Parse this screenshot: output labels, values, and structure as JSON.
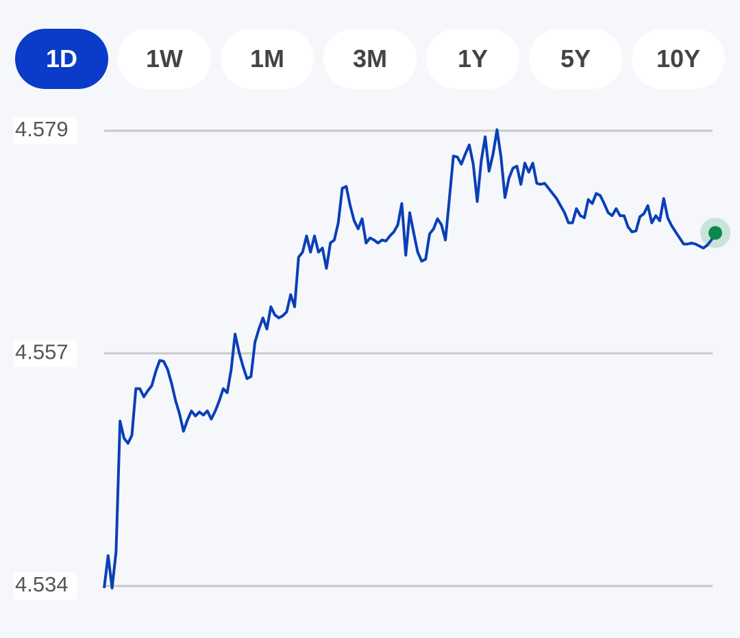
{
  "tabs": {
    "items": [
      "1D",
      "1W",
      "1M",
      "3M",
      "1Y",
      "5Y",
      "10Y"
    ],
    "active": 0
  },
  "chart_data": {
    "type": "line",
    "series": [
      {
        "color": "#0a3fb8",
        "values": [
          4.5338,
          4.537,
          4.5338,
          4.5374,
          4.5503,
          4.5486,
          4.5481,
          4.5489,
          4.5535,
          4.5535,
          4.5527,
          4.5533,
          4.5538,
          4.5552,
          4.5563,
          4.5562,
          4.5554,
          4.554,
          4.5523,
          4.551,
          4.5493,
          4.5504,
          4.5513,
          4.5508,
          4.5512,
          4.5509,
          4.5513,
          4.5505,
          4.5513,
          4.5523,
          4.5535,
          4.5531,
          4.5554,
          4.5589,
          4.5571,
          4.5557,
          4.5545,
          4.5547,
          4.5581,
          4.5594,
          4.5605,
          4.5594,
          4.5616,
          4.5608,
          4.5605,
          4.5607,
          4.5611,
          4.5628,
          4.5616,
          4.5665,
          4.567,
          4.5686,
          4.567,
          4.5686,
          4.567,
          4.5674,
          4.5654,
          4.5679,
          4.5682,
          4.5699,
          4.5733,
          4.5735,
          4.5716,
          4.5701,
          4.5693,
          4.5703,
          4.5679,
          4.5684,
          4.5682,
          4.5679,
          4.5682,
          4.5681,
          4.5686,
          4.569,
          4.5697,
          4.5718,
          4.5667,
          4.5709,
          4.5689,
          4.567,
          4.5661,
          4.5663,
          4.5688,
          4.5693,
          4.5703,
          4.5697,
          4.5682,
          4.5723,
          4.5765,
          4.5764,
          4.5757,
          4.5767,
          4.5776,
          4.5757,
          4.572,
          4.576,
          4.5784,
          4.575,
          4.5767,
          4.5791,
          4.5764,
          4.5724,
          4.5743,
          4.5753,
          4.5755,
          4.5737,
          4.5758,
          4.5749,
          4.5758,
          4.5738,
          4.5737,
          4.5738,
          4.5733,
          4.5728,
          4.5723,
          4.5716,
          4.5709,
          4.5699,
          4.5699,
          4.5713,
          4.5706,
          4.5704,
          4.5722,
          4.5718,
          4.5728,
          4.5726,
          4.5718,
          4.5709,
          4.5706,
          4.5713,
          4.5706,
          4.5706,
          4.5695,
          4.569,
          4.5691,
          4.5705,
          4.5708,
          4.5716,
          4.5699,
          4.5706,
          4.5701,
          4.5723,
          4.5704,
          4.5696,
          4.569,
          4.5684,
          4.5678,
          4.5678,
          4.5679,
          4.5678,
          4.5676,
          4.5674,
          4.5677,
          4.5682,
          4.5689
        ]
      }
    ],
    "end_marker_color": "#0a8a4a",
    "ylim": [
      4.534,
      4.579
    ],
    "yticks": [
      4.534,
      4.557,
      4.579
    ],
    "grid": true
  }
}
